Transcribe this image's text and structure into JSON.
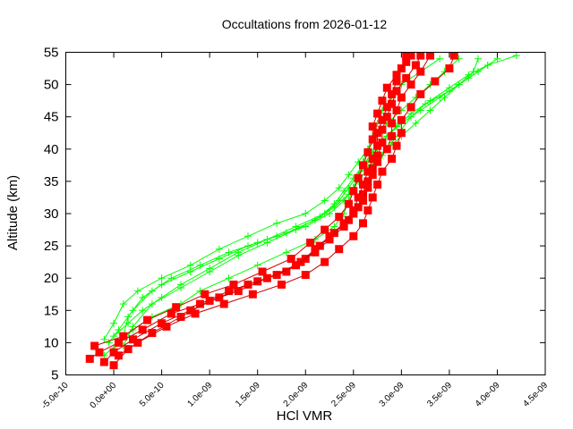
{
  "chart_data": {
    "type": "line",
    "title": "Occultations from 2026-01-12",
    "xlabel": "HCl VMR",
    "ylabel": "Altitude (km)",
    "xlim": [
      -5e-10,
      4.5e-09
    ],
    "ylim": [
      5,
      55
    ],
    "x_ticks": [
      "-5.0e-10",
      "0.0e+00",
      "5.0e-10",
      "1.0e-09",
      "1.5e-09",
      "2.0e-09",
      "2.5e-09",
      "3.0e-09",
      "3.5e-09",
      "4.0e-09",
      "4.5e-09"
    ],
    "y_ticks": [
      "5",
      "10",
      "15",
      "20",
      "25",
      "30",
      "35",
      "40",
      "45",
      "50",
      "55"
    ],
    "grid": false,
    "legend": null,
    "x_unit_note": "VMR values below are in units of 1e-10",
    "series": [
      {
        "name": "red-squares",
        "color": "#ff0000",
        "marker": "filled-square",
        "profiles": [
          [
            [
              -2.5,
              7.5
            ],
            [
              -1.5,
              8.5
            ],
            [
              0.5,
              10
            ],
            [
              3,
              12
            ],
            [
              6,
              14.5
            ],
            [
              9,
              16
            ],
            [
              12,
              18
            ],
            [
              15,
              19.5
            ],
            [
              18,
              21
            ],
            [
              20,
              23
            ],
            [
              21.5,
              25
            ],
            [
              23,
              27
            ],
            [
              24.5,
              29
            ],
            [
              25.5,
              31
            ],
            [
              26,
              33
            ],
            [
              26.5,
              35
            ],
            [
              27,
              37
            ],
            [
              27.5,
              39
            ],
            [
              28,
              41
            ],
            [
              28,
              43
            ],
            [
              28.5,
              45
            ],
            [
              29,
              47
            ],
            [
              29.5,
              49
            ],
            [
              30.5,
              51
            ],
            [
              31.5,
              53
            ],
            [
              32,
              54.5
            ]
          ],
          [
            [
              -1,
              7
            ],
            [
              0,
              8.5
            ],
            [
              2,
              10.5
            ],
            [
              5,
              13
            ],
            [
              8,
              15
            ],
            [
              11,
              17
            ],
            [
              14,
              19
            ],
            [
              17,
              20.5
            ],
            [
              19.5,
              22.5
            ],
            [
              21,
              24.5
            ],
            [
              22.5,
              26.5
            ],
            [
              24,
              28.5
            ],
            [
              25,
              30.5
            ],
            [
              25.5,
              32.5
            ],
            [
              26,
              34.5
            ],
            [
              26.5,
              36.5
            ],
            [
              27,
              38.5
            ],
            [
              27.5,
              40.5
            ],
            [
              27.5,
              42.5
            ],
            [
              28,
              44.5
            ],
            [
              28.5,
              46.5
            ],
            [
              29,
              48.5
            ],
            [
              29.5,
              50.5
            ],
            [
              30,
              52.5
            ],
            [
              30.5,
              54.5
            ]
          ],
          [
            [
              0,
              6.5
            ],
            [
              1.5,
              9
            ],
            [
              4,
              11.5
            ],
            [
              7,
              14
            ],
            [
              10,
              16.5
            ],
            [
              13,
              18
            ],
            [
              16,
              20
            ],
            [
              19,
              22
            ],
            [
              21,
              24
            ],
            [
              22.5,
              26
            ],
            [
              24,
              28
            ],
            [
              25,
              30
            ],
            [
              26,
              32
            ],
            [
              26.5,
              34
            ],
            [
              27,
              36
            ],
            [
              27.5,
              38
            ],
            [
              28.5,
              40
            ],
            [
              29,
              42
            ],
            [
              29,
              44
            ],
            [
              29.5,
              46
            ],
            [
              30,
              48
            ],
            [
              31,
              50
            ],
            [
              32,
              52
            ],
            [
              33,
              54.5
            ]
          ],
          [
            [
              -2,
              9.5
            ],
            [
              1,
              11
            ],
            [
              3.5,
              13.5
            ],
            [
              6.5,
              15.5
            ],
            [
              9.5,
              17.5
            ],
            [
              12.5,
              19
            ],
            [
              15.5,
              21
            ],
            [
              18.5,
              23
            ],
            [
              20.5,
              25.5
            ],
            [
              22,
              27.5
            ],
            [
              23.5,
              29.5
            ],
            [
              24.5,
              31.5
            ],
            [
              25,
              33.5
            ],
            [
              25.5,
              35.5
            ],
            [
              26,
              37.5
            ],
            [
              26.5,
              39.5
            ],
            [
              27,
              41.5
            ],
            [
              27,
              43.5
            ],
            [
              27.5,
              45.5
            ],
            [
              28,
              47.5
            ],
            [
              28.5,
              49.5
            ],
            [
              29.5,
              51.5
            ],
            [
              30.5,
              53.5
            ],
            [
              31,
              54.5
            ]
          ],
          [
            [
              0.5,
              8
            ],
            [
              2.5,
              10
            ],
            [
              5.5,
              12.5
            ],
            [
              8.5,
              14.5
            ],
            [
              11.5,
              16
            ],
            [
              14.5,
              17.5
            ],
            [
              17.5,
              19
            ],
            [
              20,
              20.5
            ],
            [
              22,
              22.5
            ],
            [
              23.5,
              24.5
            ],
            [
              25,
              26.5
            ],
            [
              26,
              28.5
            ],
            [
              26.5,
              30.5
            ],
            [
              27,
              32.5
            ],
            [
              27.5,
              34.5
            ],
            [
              28,
              36.5
            ],
            [
              29,
              38.5
            ],
            [
              29.5,
              40.5
            ],
            [
              30,
              42.5
            ],
            [
              30,
              44.5
            ],
            [
              31,
              46.5
            ],
            [
              32,
              48.5
            ],
            [
              33.5,
              50.5
            ],
            [
              35,
              52.5
            ],
            [
              35.5,
              54.5
            ]
          ]
        ]
      },
      {
        "name": "green-crosses",
        "color": "#00ff00",
        "marker": "plus",
        "profiles": [
          [
            [
              -1,
              8
            ],
            [
              0.5,
              10
            ],
            [
              2,
              12
            ],
            [
              4,
              14
            ],
            [
              7,
              16
            ],
            [
              9,
              18
            ],
            [
              12,
              20
            ],
            [
              15,
              22
            ],
            [
              18,
              24
            ],
            [
              21,
              26
            ],
            [
              23,
              28
            ],
            [
              24,
              30
            ],
            [
              24.5,
              32
            ],
            [
              25,
              34
            ],
            [
              25.5,
              36
            ],
            [
              26,
              38
            ],
            [
              26.5,
              40
            ],
            [
              27,
              42
            ],
            [
              27.5,
              44
            ],
            [
              28,
              46
            ],
            [
              29,
              48
            ],
            [
              30,
              50
            ],
            [
              32,
              52
            ],
            [
              34,
              54
            ]
          ],
          [
            [
              0,
              9
            ],
            [
              1,
              11
            ],
            [
              1.5,
              14
            ],
            [
              3,
              17
            ],
            [
              5,
              19
            ],
            [
              8,
              21
            ],
            [
              11,
              23
            ],
            [
              14,
              25
            ],
            [
              17,
              26.5
            ],
            [
              20,
              28
            ],
            [
              22.5,
              30
            ],
            [
              24,
              32
            ],
            [
              25,
              34
            ],
            [
              25.5,
              36
            ],
            [
              26.5,
              38
            ],
            [
              27.5,
              40
            ],
            [
              28.5,
              42
            ],
            [
              30,
              44
            ],
            [
              32,
              46
            ],
            [
              34,
              48
            ],
            [
              36,
              50
            ],
            [
              38,
              52
            ],
            [
              40,
              54
            ]
          ],
          [
            [
              -0.5,
              10
            ],
            [
              0.5,
              12
            ],
            [
              2,
              15
            ],
            [
              4,
              18
            ],
            [
              6,
              20
            ],
            [
              9,
              22
            ],
            [
              12,
              24
            ],
            [
              15,
              25.5
            ],
            [
              18,
              27
            ],
            [
              21,
              29
            ],
            [
              23,
              31
            ],
            [
              24.5,
              33
            ],
            [
              25.5,
              35
            ],
            [
              26.5,
              37
            ],
            [
              28,
              39
            ],
            [
              29,
              41
            ],
            [
              30,
              43
            ],
            [
              31,
              45
            ],
            [
              32.5,
              47
            ],
            [
              35,
              49
            ],
            [
              37,
              51
            ],
            [
              39,
              53
            ],
            [
              42,
              54.5
            ]
          ],
          [
            [
              1,
              9.5
            ],
            [
              2,
              12.5
            ],
            [
              4,
              16
            ],
            [
              7,
              18.5
            ],
            [
              10,
              21
            ],
            [
              13,
              23.5
            ],
            [
              16,
              25.5
            ],
            [
              19,
              27.5
            ],
            [
              21.5,
              29.5
            ],
            [
              23,
              31.5
            ],
            [
              24,
              33.5
            ],
            [
              25,
              35.5
            ],
            [
              26,
              37.5
            ],
            [
              27,
              39.5
            ],
            [
              28,
              41.5
            ],
            [
              29.5,
              43.5
            ],
            [
              31,
              45.5
            ],
            [
              33,
              47.5
            ],
            [
              35,
              49.5
            ],
            [
              37,
              51.5
            ],
            [
              39,
              53
            ]
          ],
          [
            [
              0,
              11
            ],
            [
              1.5,
              13
            ],
            [
              3,
              15
            ],
            [
              5,
              17
            ],
            [
              7,
              19
            ],
            [
              10,
              21.5
            ],
            [
              13,
              24
            ],
            [
              16,
              26
            ],
            [
              19,
              28
            ],
            [
              22,
              30
            ],
            [
              23.5,
              32
            ],
            [
              24.5,
              34
            ],
            [
              25.5,
              36
            ],
            [
              27,
              38
            ],
            [
              28.5,
              40
            ],
            [
              30,
              42
            ],
            [
              31.5,
              44
            ],
            [
              33,
              46
            ],
            [
              34.5,
              48
            ],
            [
              36,
              50
            ],
            [
              37.5,
              52
            ],
            [
              38,
              54
            ]
          ],
          [
            [
              -1,
              10.5
            ],
            [
              0,
              13
            ],
            [
              1,
              16
            ],
            [
              2.5,
              18
            ],
            [
              5,
              20
            ],
            [
              8,
              22
            ],
            [
              11,
              24.5
            ],
            [
              14,
              26.5
            ],
            [
              17,
              28.5
            ],
            [
              20,
              30
            ],
            [
              22,
              32
            ],
            [
              23.5,
              34
            ],
            [
              24.5,
              36
            ],
            [
              25.5,
              38
            ],
            [
              26.5,
              40
            ],
            [
              27.5,
              42
            ],
            [
              28.5,
              44
            ],
            [
              30,
              46
            ],
            [
              31.5,
              48
            ],
            [
              33,
              50
            ],
            [
              34.5,
              52
            ],
            [
              36,
              54
            ]
          ]
        ]
      }
    ]
  }
}
